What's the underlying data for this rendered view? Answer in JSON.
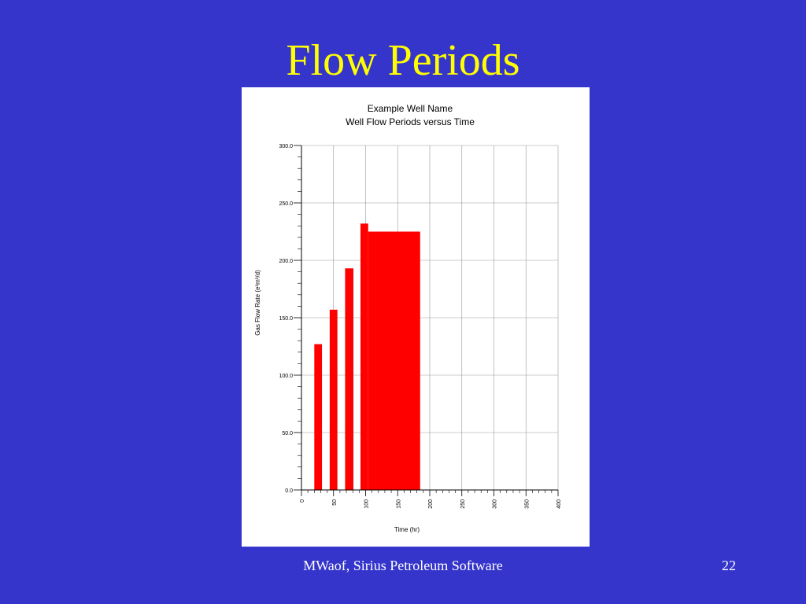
{
  "slide": {
    "title": "Flow Periods",
    "footer": "MWaof, Sirius Petroleum Software",
    "page": "22"
  },
  "chart_data": {
    "type": "step-bar",
    "title": "Example Well Name",
    "subtitle": "Well Flow Periods versus Time",
    "xlabel": "Time (hr)",
    "ylabel": "Gas Flow Rate (e³m³/d)",
    "x_start": [
      20,
      44,
      68,
      92,
      104
    ],
    "x_end": [
      32,
      56,
      81,
      104,
      185
    ],
    "values": [
      127,
      157,
      193,
      232,
      225
    ],
    "color": "#ff0000",
    "xlim": [
      0,
      400
    ],
    "xticks": [
      0,
      50,
      100,
      150,
      200,
      250,
      300,
      350,
      400
    ],
    "ylim": [
      0,
      300
    ],
    "yticks": [
      {
        "value": 0,
        "label": "0.0"
      },
      {
        "value": 50,
        "label": "50.0"
      },
      {
        "value": 100,
        "label": "100.0"
      },
      {
        "value": 150,
        "label": "150.0"
      },
      {
        "value": 200,
        "label": "200.0"
      },
      {
        "value": 250,
        "label": "250.0"
      },
      {
        "value": 300,
        "label": "300.0"
      }
    ],
    "grid": true
  }
}
